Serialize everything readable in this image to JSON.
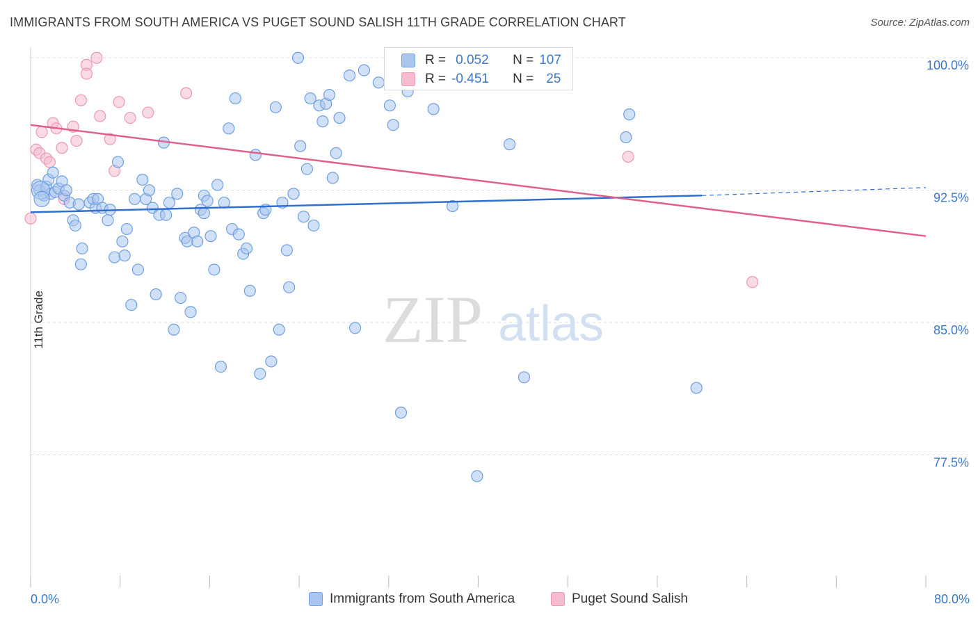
{
  "title": "IMMIGRANTS FROM SOUTH AMERICA VS PUGET SOUND SALISH 11TH GRADE CORRELATION CHART",
  "source": "Source: ZipAtlas.com",
  "watermark": {
    "zip": "ZIP",
    "atlas": "atlas"
  },
  "colors": {
    "blue_fill": "#a9c6ef",
    "blue_stroke": "#6f9fe0",
    "blue_line": "#2f6fd0",
    "pink_fill": "#f5bccd",
    "pink_stroke": "#ec98b2",
    "pink_line": "#e0608d",
    "axis_text": "#3c78c8",
    "grid": "#dddddd"
  },
  "stats_legend": {
    "rows": [
      {
        "r_label": "R =",
        "r_value": "0.052",
        "n_label": "N =",
        "n_value": "107"
      },
      {
        "r_label": "R =",
        "r_value": "-0.451",
        "n_label": "N =",
        "n_value": "25"
      }
    ]
  },
  "bottom_legend": {
    "items": [
      "Immigrants from South America",
      "Puget Sound Salish"
    ]
  },
  "chart_data": {
    "type": "scatter",
    "title": "IMMIGRANTS FROM SOUTH AMERICA VS PUGET SOUND SALISH 11TH GRADE CORRELATION CHART",
    "xlabel": "",
    "ylabel": "11th Grade",
    "xlim": [
      0,
      80
    ],
    "ylim": [
      70.0,
      100.6
    ],
    "x_ticks": [
      "0.0%",
      "80.0%"
    ],
    "y_ticks": [
      {
        "value": 77.5,
        "label": "77.5%"
      },
      {
        "value": 85.0,
        "label": "85.0%"
      },
      {
        "value": 92.5,
        "label": "92.5%"
      },
      {
        "value": 100.0,
        "label": "100.0%"
      }
    ],
    "grid": true,
    "legend_position": "bottom",
    "series": [
      {
        "name": "Immigrants from South America",
        "R": 0.052,
        "N": 107,
        "trend": {
          "x0": 0,
          "y0": 91.25,
          "x1": 60,
          "y1": 92.2,
          "dashed_to_x": 80,
          "dashed_to_y": 92.65
        },
        "points": [
          [
            0.6,
            92.8
          ],
          [
            0.8,
            92.5
          ],
          [
            1.2,
            92.2
          ],
          [
            1.4,
            92.7
          ],
          [
            1.6,
            93.1
          ],
          [
            1.8,
            92.3
          ],
          [
            2.0,
            93.5
          ],
          [
            2.2,
            92.4
          ],
          [
            2.5,
            92.6
          ],
          [
            2.8,
            93.0
          ],
          [
            3.0,
            92.2
          ],
          [
            3.2,
            92.5
          ],
          [
            3.5,
            91.8
          ],
          [
            3.8,
            90.8
          ],
          [
            4.0,
            90.5
          ],
          [
            4.3,
            91.7
          ],
          [
            4.6,
            89.2
          ],
          [
            4.5,
            88.3
          ],
          [
            5.3,
            91.8
          ],
          [
            5.6,
            92.0
          ],
          [
            5.8,
            91.5
          ],
          [
            6.0,
            92.0
          ],
          [
            6.4,
            91.5
          ],
          [
            6.9,
            90.8
          ],
          [
            7.1,
            91.4
          ],
          [
            7.5,
            88.7
          ],
          [
            7.8,
            94.1
          ],
          [
            8.2,
            89.6
          ],
          [
            8.4,
            88.8
          ],
          [
            8.6,
            90.3
          ],
          [
            9.0,
            86.0
          ],
          [
            9.3,
            92.0
          ],
          [
            9.6,
            88.0
          ],
          [
            10.0,
            93.1
          ],
          [
            10.3,
            92.0
          ],
          [
            10.6,
            92.5
          ],
          [
            10.9,
            91.5
          ],
          [
            11.2,
            86.6
          ],
          [
            11.5,
            91.1
          ],
          [
            11.9,
            95.2
          ],
          [
            12.1,
            91.1
          ],
          [
            12.4,
            91.8
          ],
          [
            12.8,
            84.6
          ],
          [
            13.1,
            92.3
          ],
          [
            13.4,
            86.4
          ],
          [
            13.8,
            89.8
          ],
          [
            14.0,
            89.6
          ],
          [
            14.3,
            85.6
          ],
          [
            14.6,
            90.1
          ],
          [
            14.9,
            89.6
          ],
          [
            15.2,
            91.4
          ],
          [
            15.5,
            92.2
          ],
          [
            15.8,
            91.9
          ],
          [
            16.1,
            89.9
          ],
          [
            16.4,
            88.0
          ],
          [
            16.7,
            92.8
          ],
          [
            17.0,
            82.5
          ],
          [
            17.3,
            91.8
          ],
          [
            17.7,
            96.0
          ],
          [
            18.0,
            90.3
          ],
          [
            18.3,
            97.7
          ],
          [
            18.6,
            90.0
          ],
          [
            19.0,
            88.9
          ],
          [
            19.3,
            89.2
          ],
          [
            19.6,
            86.8
          ],
          [
            20.1,
            94.5
          ],
          [
            20.5,
            82.1
          ],
          [
            20.8,
            91.2
          ],
          [
            21.0,
            91.4
          ],
          [
            21.5,
            82.8
          ],
          [
            21.9,
            97.2
          ],
          [
            22.2,
            84.6
          ],
          [
            22.5,
            91.8
          ],
          [
            22.9,
            89.1
          ],
          [
            23.1,
            87.0
          ],
          [
            23.5,
            92.3
          ],
          [
            24.1,
            95.0
          ],
          [
            24.4,
            91.0
          ],
          [
            24.7,
            93.7
          ],
          [
            25.0,
            97.7
          ],
          [
            25.3,
            90.5
          ],
          [
            25.8,
            97.3
          ],
          [
            26.1,
            96.4
          ],
          [
            26.4,
            97.4
          ],
          [
            26.7,
            97.9
          ],
          [
            27.0,
            93.2
          ],
          [
            27.3,
            94.6
          ],
          [
            27.6,
            96.6
          ],
          [
            28.5,
            99.0
          ],
          [
            29.0,
            84.7
          ],
          [
            29.8,
            99.3
          ],
          [
            31.1,
            98.6
          ],
          [
            32.1,
            97.3
          ],
          [
            32.4,
            96.2
          ],
          [
            33.1,
            79.9
          ],
          [
            33.7,
            98.1
          ],
          [
            34.0,
            100.0
          ],
          [
            36.0,
            97.1
          ],
          [
            37.7,
            91.6
          ],
          [
            39.9,
            76.3
          ],
          [
            42.8,
            95.1
          ],
          [
            44.1,
            81.9
          ],
          [
            53.2,
            95.5
          ],
          [
            53.5,
            96.8
          ],
          [
            59.5,
            81.3
          ],
          [
            23.9,
            100.0
          ],
          [
            15.5,
            91.2
          ]
        ]
      },
      {
        "name": "Puget Sound Salish",
        "R": -0.451,
        "N": 25,
        "trend": {
          "x0": 0,
          "y0": 96.2,
          "x1": 80,
          "y1": 89.9
        },
        "points": [
          [
            0.0,
            90.9
          ],
          [
            0.5,
            94.8
          ],
          [
            0.8,
            94.6
          ],
          [
            1.0,
            95.8
          ],
          [
            1.4,
            94.3
          ],
          [
            1.7,
            94.1
          ],
          [
            2.0,
            96.3
          ],
          [
            2.3,
            96.0
          ],
          [
            2.8,
            94.9
          ],
          [
            3.0,
            92.0
          ],
          [
            3.8,
            96.1
          ],
          [
            4.1,
            95.3
          ],
          [
            4.5,
            97.6
          ],
          [
            5.0,
            99.6
          ],
          [
            5.0,
            99.1
          ],
          [
            5.9,
            100.0
          ],
          [
            6.2,
            96.7
          ],
          [
            7.1,
            95.4
          ],
          [
            7.5,
            93.6
          ],
          [
            7.9,
            97.5
          ],
          [
            8.9,
            96.6
          ],
          [
            10.5,
            96.9
          ],
          [
            13.9,
            98.0
          ],
          [
            53.4,
            94.4
          ],
          [
            64.5,
            87.3
          ]
        ]
      }
    ]
  }
}
